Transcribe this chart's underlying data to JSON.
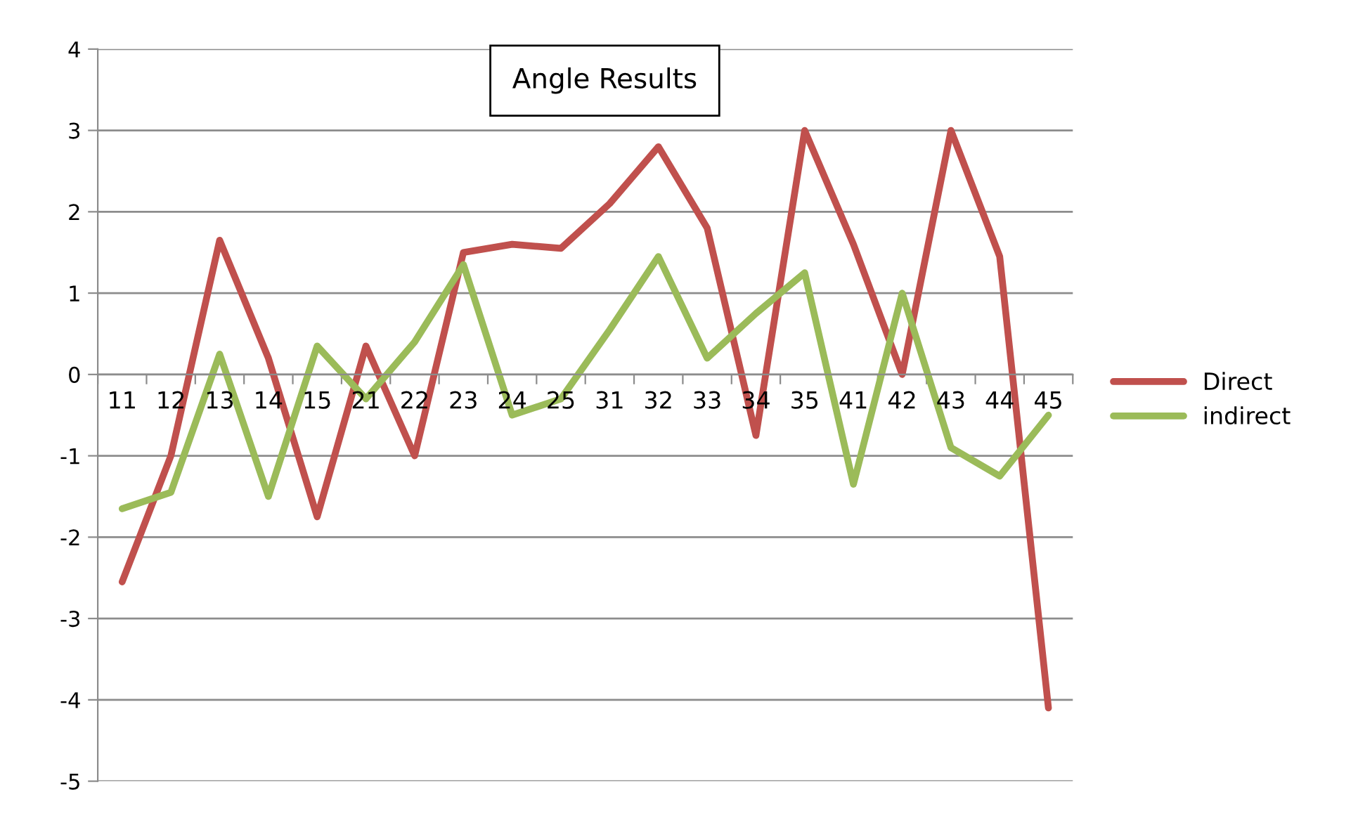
{
  "chart_data": {
    "type": "line",
    "title": "Angle Results",
    "categories": [
      "11",
      "12",
      "13",
      "14",
      "15",
      "21",
      "22",
      "23",
      "24",
      "25",
      "31",
      "32",
      "33",
      "34",
      "35",
      "41",
      "42",
      "43",
      "44",
      "45"
    ],
    "series": [
      {
        "name": "Direct",
        "color": "#c0504d",
        "values": [
          -2.55,
          -1.0,
          1.65,
          0.2,
          -1.75,
          0.35,
          -1.0,
          1.5,
          1.6,
          1.55,
          2.1,
          2.8,
          1.8,
          -0.75,
          3.0,
          1.6,
          0.0,
          3.0,
          1.45,
          -4.1
        ]
      },
      {
        "name": "indirect",
        "color": "#9bbb59",
        "values": [
          -1.65,
          -1.45,
          0.25,
          -1.5,
          0.35,
          -0.3,
          0.4,
          1.35,
          -0.5,
          -0.3,
          0.55,
          1.45,
          0.2,
          0.75,
          1.25,
          -1.35,
          1.0,
          -0.9,
          -1.25,
          -0.5
        ]
      }
    ],
    "ylim": [
      -5,
      4
    ],
    "yticks": [
      -5,
      -4,
      -3,
      -2,
      -1,
      0,
      1,
      2,
      3,
      4
    ],
    "grid": "y",
    "legend": "right",
    "marker": "none",
    "line_style": "solid"
  }
}
